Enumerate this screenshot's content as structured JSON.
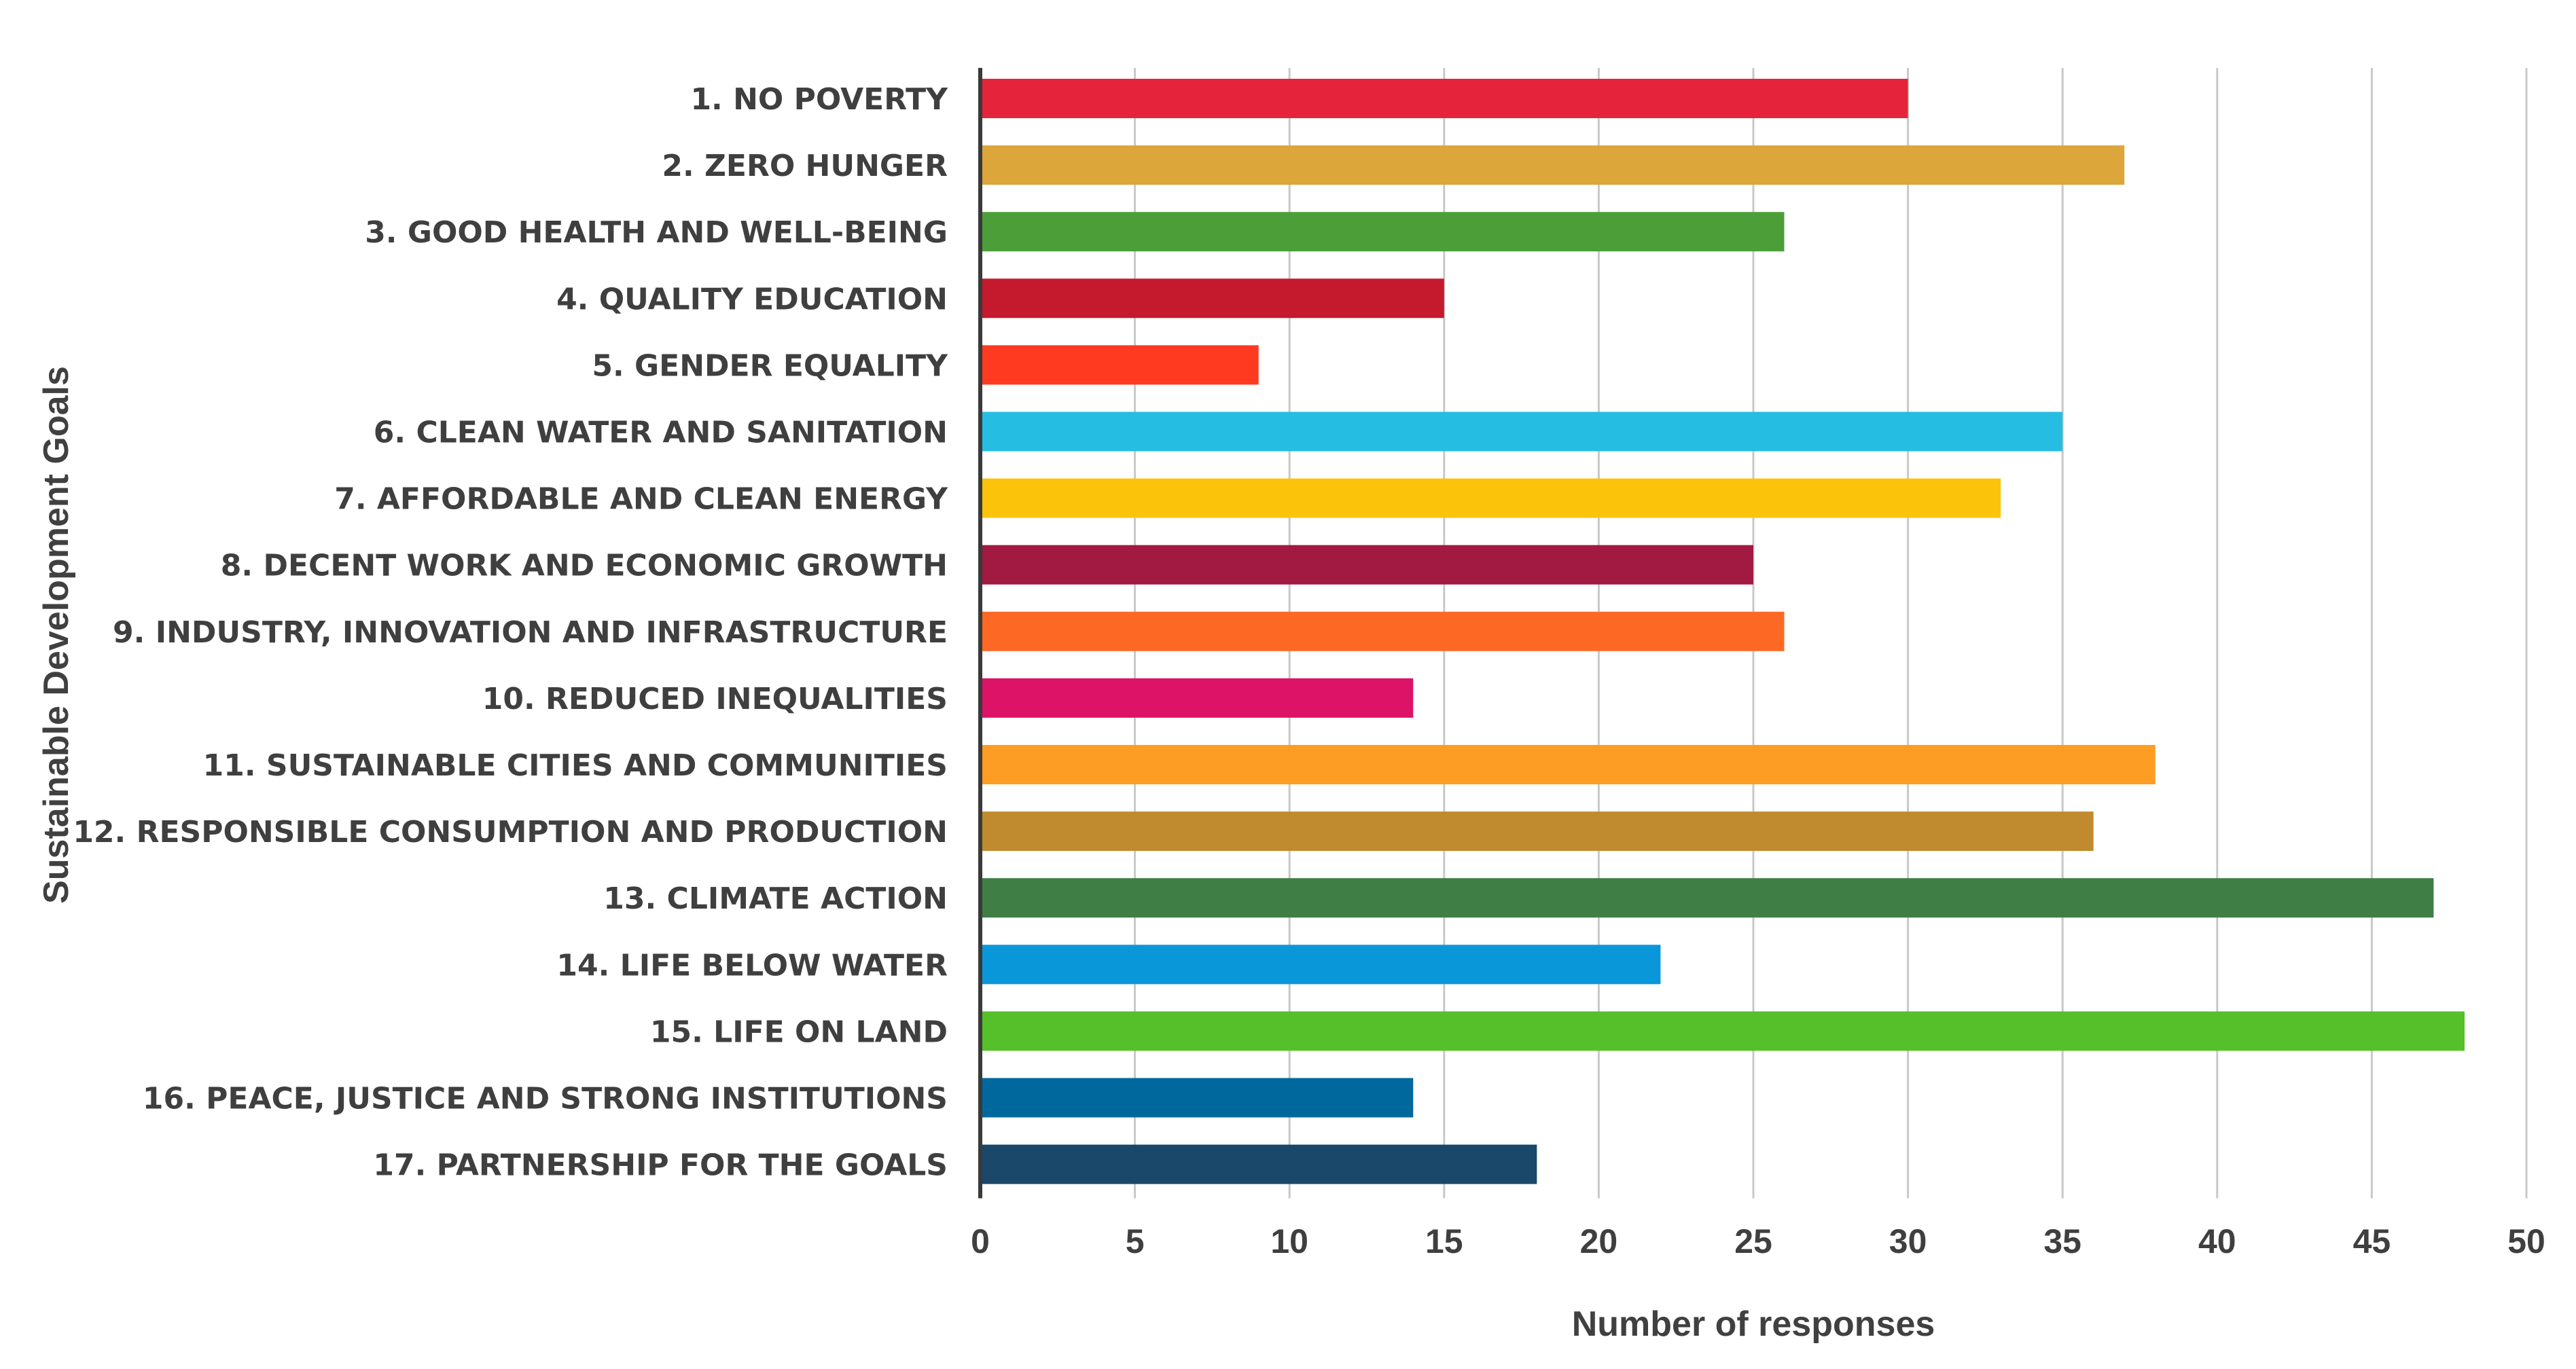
{
  "chart_data": {
    "type": "bar",
    "orientation": "horizontal",
    "title": "",
    "xlabel": "Number of responses",
    "ylabel": "Sustainable Development Goals",
    "xlim": [
      0,
      50
    ],
    "xticks": [
      0,
      5,
      10,
      15,
      20,
      25,
      30,
      35,
      40,
      45,
      50
    ],
    "grid": "vertical",
    "legend": "none",
    "categories": [
      "1. NO POVERTY",
      "2. ZERO HUNGER",
      "3. GOOD HEALTH AND WELL-BEING",
      "4. QUALITY EDUCATION",
      "5. GENDER EQUALITY",
      "6. CLEAN WATER AND SANITATION",
      "7. AFFORDABLE AND CLEAN ENERGY",
      "8. DECENT WORK AND ECONOMIC GROWTH",
      "9. INDUSTRY, INNOVATION AND INFRASTRUCTURE",
      "10. REDUCED INEQUALITIES",
      "11. SUSTAINABLE CITIES AND COMMUNITIES",
      "12. RESPONSIBLE CONSUMPTION AND PRODUCTION",
      "13. CLIMATE ACTION",
      "14. LIFE BELOW WATER",
      "15. LIFE ON LAND",
      "16. PEACE, JUSTICE AND STRONG INSTITUTIONS",
      "17. PARTNERSHIP FOR THE GOALS"
    ],
    "values": [
      30,
      37,
      26,
      15,
      9,
      35,
      33,
      25,
      26,
      14,
      38,
      36,
      47,
      22,
      48,
      14,
      18
    ],
    "colors": [
      "#E5243B",
      "#DDA63A",
      "#4C9F38",
      "#C5192D",
      "#FF3A21",
      "#26BDE2",
      "#FCC30B",
      "#A21942",
      "#FD6925",
      "#DD1367",
      "#FD9D24",
      "#BF8B2E",
      "#3F7E44",
      "#0A97D9",
      "#56C02B",
      "#00689D",
      "#19486A"
    ]
  }
}
